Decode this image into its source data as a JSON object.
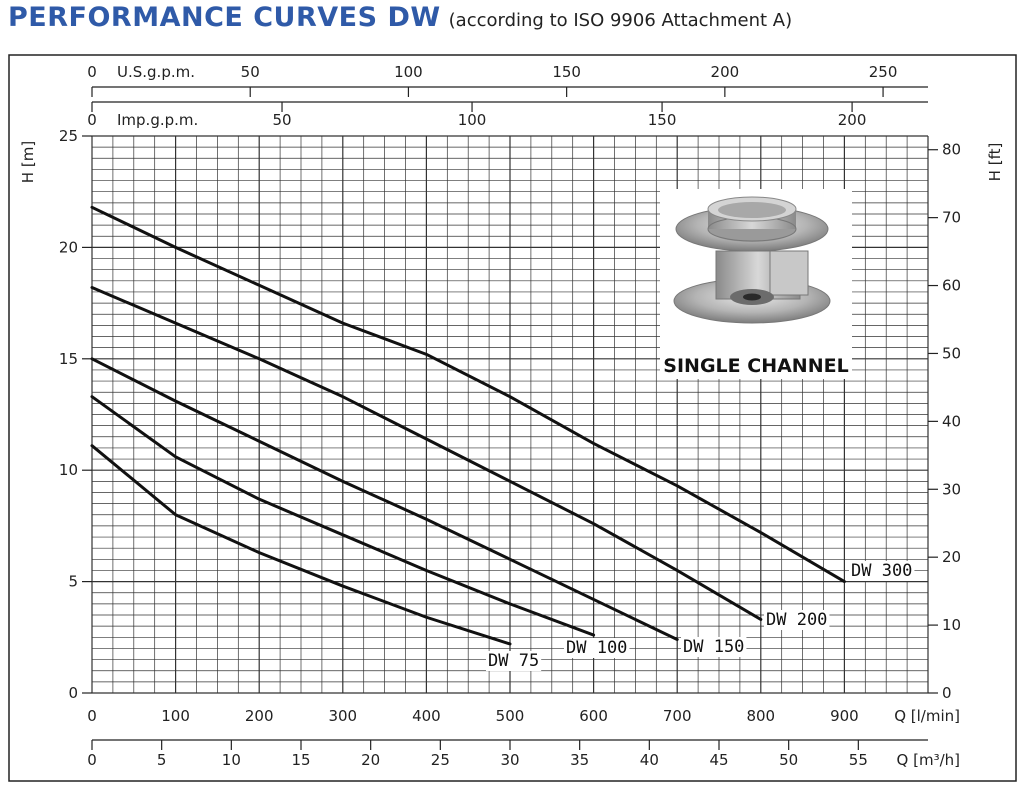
{
  "header": {
    "title": "PERFORMANCE CURVES DW",
    "subtitle": "(according to ISO 9906 Attachment A)"
  },
  "inset": {
    "caption": "SINGLE CHANNEL"
  },
  "chart_data": {
    "type": "line",
    "x_unit_label": "Q [l/min]",
    "x2_unit_label": "Q [m³/h]",
    "top1_unit_label": "U.S.g.p.m.",
    "top2_unit_label": "Imp.g.p.m.",
    "ylabel_left": "H [m]",
    "ylabel_right": "H [ft]",
    "xlim": [
      0,
      1000
    ],
    "ylim": [
      0,
      25
    ],
    "x_ticks": [
      0,
      100,
      200,
      300,
      400,
      500,
      600,
      700,
      800,
      900
    ],
    "x2_ticks": [
      0,
      5,
      10,
      15,
      20,
      25,
      30,
      35,
      40,
      45,
      50,
      55
    ],
    "usgpm_ticks": [
      0,
      50,
      100,
      150,
      200,
      250
    ],
    "impgpm_ticks": [
      0,
      50,
      100,
      150,
      200
    ],
    "y_ticks": [
      0,
      5,
      10,
      15,
      20,
      25
    ],
    "y_ft_ticks": [
      0,
      10,
      20,
      30,
      40,
      50,
      60,
      70,
      80
    ],
    "grid": true,
    "series": [
      {
        "name": "DW 75",
        "x": [
          0,
          100,
          200,
          300,
          400,
          500
        ],
        "y": [
          11.1,
          8.0,
          6.3,
          4.8,
          3.4,
          2.2
        ]
      },
      {
        "name": "DW 100",
        "x": [
          0,
          100,
          200,
          300,
          400,
          500,
          600
        ],
        "y": [
          13.3,
          10.6,
          8.7,
          7.1,
          5.5,
          4.0,
          2.6
        ]
      },
      {
        "name": "DW 150",
        "x": [
          0,
          100,
          200,
          300,
          400,
          500,
          600,
          700
        ],
        "y": [
          15.0,
          13.1,
          11.3,
          9.5,
          7.8,
          6.0,
          4.2,
          2.4
        ]
      },
      {
        "name": "DW 200",
        "x": [
          0,
          100,
          200,
          300,
          400,
          500,
          600,
          700,
          800
        ],
        "y": [
          18.2,
          16.6,
          15.0,
          13.3,
          11.4,
          9.5,
          7.6,
          5.5,
          3.3
        ]
      },
      {
        "name": "DW 300",
        "x": [
          0,
          100,
          200,
          300,
          400,
          500,
          600,
          700,
          800,
          900
        ],
        "y": [
          21.8,
          20.0,
          18.3,
          16.6,
          15.2,
          13.3,
          11.2,
          9.3,
          7.2,
          5.0
        ]
      }
    ]
  }
}
